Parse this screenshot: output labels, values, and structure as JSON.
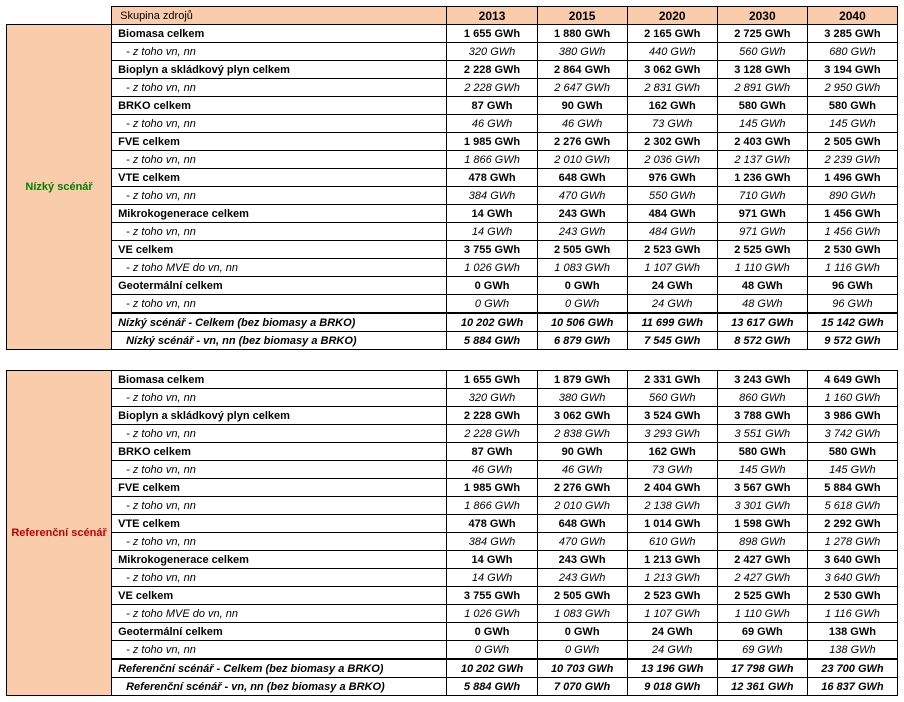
{
  "headers": {
    "group": "Skupina zdrojů",
    "years": [
      "2013",
      "2015",
      "2020",
      "2030",
      "2040"
    ]
  },
  "unit": "GWh",
  "scenarios": [
    {
      "side_label": "Nízký scénář",
      "side_color": "green",
      "rows": [
        {
          "type": "main",
          "label": "Biomasa celkem",
          "vals": [
            "1 655",
            "1 880",
            "2 165",
            "2 725",
            "3 285"
          ]
        },
        {
          "type": "sub",
          "label": " - z toho vn, nn",
          "vals": [
            "320",
            "380",
            "440",
            "560",
            "680"
          ]
        },
        {
          "type": "main",
          "label": "Bioplyn a skládkový plyn celkem",
          "vals": [
            "2 228",
            "2 864",
            "3 062",
            "3 128",
            "3 194"
          ]
        },
        {
          "type": "sub",
          "label": " - z toho vn, nn",
          "vals": [
            "2 228",
            "2 647",
            "2 831",
            "2 891",
            "2 950"
          ]
        },
        {
          "type": "main",
          "label": "BRKO celkem",
          "vals": [
            "87",
            "90",
            "162",
            "580",
            "580"
          ]
        },
        {
          "type": "sub",
          "label": " - z toho vn, nn",
          "vals": [
            "46",
            "46",
            "73",
            "145",
            "145"
          ]
        },
        {
          "type": "main",
          "label": "FVE celkem",
          "vals": [
            "1 985",
            "2 276",
            "2 302",
            "2 403",
            "2 505"
          ]
        },
        {
          "type": "sub",
          "label": " - z toho vn, nn",
          "vals": [
            "1 866",
            "2 010",
            "2 036",
            "2 137",
            "2 239"
          ]
        },
        {
          "type": "main",
          "label": "VTE celkem",
          "vals": [
            "478",
            "648",
            "976",
            "1 236",
            "1 496"
          ]
        },
        {
          "type": "sub",
          "label": " - z toho vn, nn",
          "vals": [
            "384",
            "470",
            "550",
            "710",
            "890"
          ]
        },
        {
          "type": "main",
          "label": "Mikrokogenerace celkem",
          "vals": [
            "14",
            "243",
            "484",
            "971",
            "1 456"
          ]
        },
        {
          "type": "sub",
          "label": " - z toho vn, nn",
          "vals": [
            "14",
            "243",
            "484",
            "971",
            "1 456"
          ]
        },
        {
          "type": "main",
          "label": "VE celkem",
          "vals": [
            "3 755",
            "2 505",
            "2 523",
            "2 525",
            "2 530"
          ]
        },
        {
          "type": "sub",
          "label": " - z toho MVE do vn, nn",
          "vals": [
            "1 026",
            "1 083",
            "1 107",
            "1 110",
            "1 116"
          ]
        },
        {
          "type": "main",
          "label": "Geotermální celkem",
          "vals": [
            "0",
            "0",
            "24",
            "48",
            "96"
          ]
        },
        {
          "type": "sub",
          "label": " - z toho vn, nn",
          "vals": [
            "0",
            "0",
            "24",
            "48",
            "96"
          ]
        },
        {
          "type": "sum",
          "label": "Nízký scénář - Celkem (bez biomasy a BRKO)",
          "vals": [
            "10 202",
            "10 506",
            "11 699",
            "13 617",
            "15 142"
          ]
        },
        {
          "type": "sum2",
          "label": "Nízký scénář -  vn, nn (bez biomasy a BRKO)",
          "vals": [
            "5 884",
            "6 879",
            "7 545",
            "8 572",
            "9 572"
          ]
        }
      ]
    },
    {
      "side_label": "Referenční scénář",
      "side_color": "red",
      "rows": [
        {
          "type": "main",
          "label": "Biomasa celkem",
          "vals": [
            "1 655",
            "1 879",
            "2 331",
            "3 243",
            "4 649"
          ]
        },
        {
          "type": "sub",
          "label": " - z toho vn, nn",
          "vals": [
            "320",
            "380",
            "560",
            "860",
            "1 160"
          ]
        },
        {
          "type": "main",
          "label": "Bioplyn a skládkový plyn celkem",
          "vals": [
            "2 228",
            "3 062",
            "3 524",
            "3 788",
            "3 986"
          ]
        },
        {
          "type": "sub",
          "label": " - z toho vn, nn",
          "vals": [
            "2 228",
            "2 838",
            "3 293",
            "3 551",
            "3 742"
          ]
        },
        {
          "type": "main",
          "label": "BRKO celkem",
          "vals": [
            "87",
            "90",
            "162",
            "580",
            "580"
          ]
        },
        {
          "type": "sub",
          "label": " - z toho vn, nn",
          "vals": [
            "46",
            "46",
            "73",
            "145",
            "145"
          ]
        },
        {
          "type": "main",
          "label": "FVE celkem",
          "vals": [
            "1 985",
            "2 276",
            "2 404",
            "3 567",
            "5 884"
          ]
        },
        {
          "type": "sub",
          "label": " - z toho vn, nn",
          "vals": [
            "1 866",
            "2 010",
            "2 138",
            "3 301",
            "5 618"
          ]
        },
        {
          "type": "main",
          "label": "VTE celkem",
          "vals": [
            "478",
            "648",
            "1 014",
            "1 598",
            "2 292"
          ]
        },
        {
          "type": "sub",
          "label": " - z toho vn, nn",
          "vals": [
            "384",
            "470",
            "610",
            "898",
            "1 278"
          ]
        },
        {
          "type": "main",
          "label": "Mikrokogenerace celkem",
          "vals": [
            "14",
            "243",
            "1 213",
            "2 427",
            "3 640"
          ]
        },
        {
          "type": "sub",
          "label": " - z toho vn, nn",
          "vals": [
            "14",
            "243",
            "1 213",
            "2 427",
            "3 640"
          ]
        },
        {
          "type": "main",
          "label": "VE celkem",
          "vals": [
            "3 755",
            "2 505",
            "2 523",
            "2 525",
            "2 530"
          ]
        },
        {
          "type": "sub",
          "label": " - z toho MVE do vn, nn",
          "vals": [
            "1 026",
            "1 083",
            "1 107",
            "1 110",
            "1 116"
          ]
        },
        {
          "type": "main",
          "label": "Geotermální celkem",
          "vals": [
            "0",
            "0",
            "24",
            "69",
            "138"
          ]
        },
        {
          "type": "sub",
          "label": " - z toho vn, nn",
          "vals": [
            "0",
            "0",
            "24",
            "69",
            "138"
          ]
        },
        {
          "type": "sum",
          "label": "Referenční scénář - Celkem (bez biomasy a BRKO)",
          "vals": [
            "10 202",
            "10 703",
            "13 196",
            "17 798",
            "23 700"
          ]
        },
        {
          "type": "sum2",
          "label": "Referenční scénář -  vn, nn (bez biomasy a BRKO)",
          "vals": [
            "5 884",
            "7 070",
            "9 018",
            "12 361",
            "16 837"
          ]
        }
      ]
    }
  ]
}
